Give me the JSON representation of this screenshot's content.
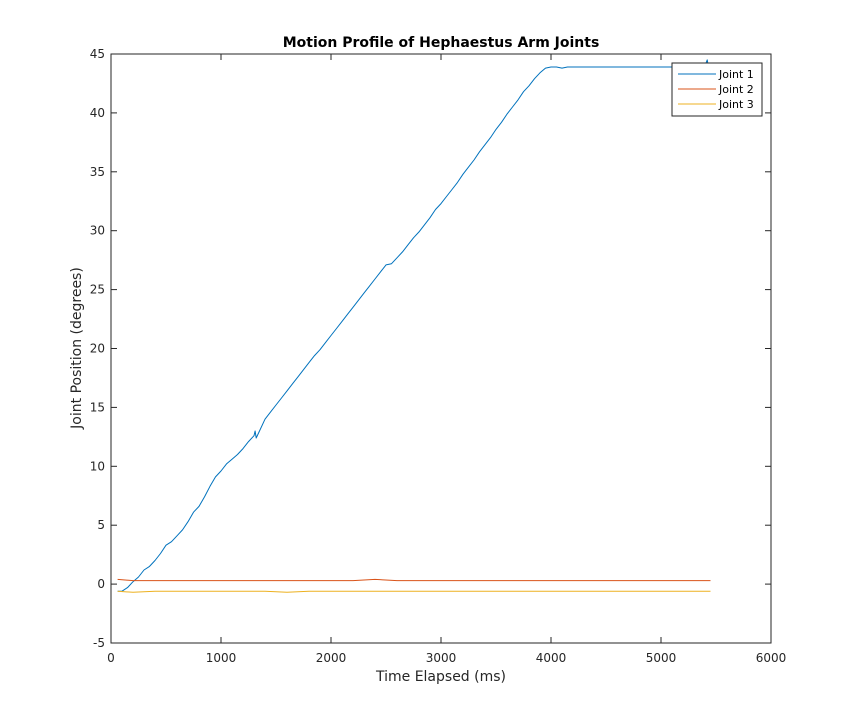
{
  "chart_data": {
    "type": "line",
    "title": "Motion Profile of Hephaestus Arm Joints",
    "xlabel": "Time Elapsed (ms)",
    "ylabel": "Joint Position (degrees)",
    "xlim": [
      0,
      6000
    ],
    "ylim": [
      -5,
      45
    ],
    "xticks": [
      0,
      1000,
      2000,
      3000,
      4000,
      5000,
      6000
    ],
    "yticks": [
      -5,
      0,
      5,
      10,
      15,
      20,
      25,
      30,
      35,
      40,
      45
    ],
    "grid": false,
    "legend": {
      "position": "top-right",
      "entries": [
        "Joint 1",
        "Joint 2",
        "Joint 3"
      ]
    },
    "series": [
      {
        "name": "Joint 1",
        "color": "#0072BD",
        "x": [
          60,
          100,
          150,
          200,
          250,
          300,
          350,
          400,
          450,
          500,
          550,
          600,
          650,
          700,
          750,
          800,
          850,
          900,
          950,
          1000,
          1050,
          1100,
          1150,
          1200,
          1250,
          1300,
          1310,
          1320,
          1350,
          1400,
          1450,
          1500,
          1550,
          1600,
          1650,
          1700,
          1750,
          1800,
          1850,
          1900,
          1950,
          2000,
          2050,
          2100,
          2150,
          2200,
          2250,
          2300,
          2350,
          2400,
          2450,
          2500,
          2550,
          2600,
          2650,
          2700,
          2750,
          2800,
          2850,
          2900,
          2950,
          3000,
          3050,
          3100,
          3150,
          3200,
          3250,
          3300,
          3350,
          3400,
          3450,
          3500,
          3550,
          3600,
          3650,
          3700,
          3750,
          3800,
          3850,
          3900,
          3950,
          4000,
          4050,
          4100,
          4150,
          4200,
          4250,
          4300,
          4400,
          4500,
          4600,
          4700,
          4800,
          4900,
          5000,
          5100,
          5200,
          5300,
          5400,
          5420,
          5430,
          5450
        ],
        "y": [
          -0.6,
          -0.6,
          -0.3,
          0.2,
          0.6,
          1.2,
          1.5,
          2.0,
          2.6,
          3.3,
          3.6,
          4.1,
          4.6,
          5.3,
          6.1,
          6.6,
          7.4,
          8.3,
          9.1,
          9.6,
          10.2,
          10.6,
          11.0,
          11.5,
          12.1,
          12.6,
          13.0,
          12.4,
          13.0,
          14.0,
          14.6,
          15.2,
          15.8,
          16.4,
          17.0,
          17.6,
          18.2,
          18.8,
          19.4,
          19.9,
          20.5,
          21.1,
          21.7,
          22.3,
          22.9,
          23.5,
          24.1,
          24.7,
          25.3,
          25.9,
          26.5,
          27.1,
          27.2,
          27.7,
          28.2,
          28.8,
          29.4,
          29.9,
          30.5,
          31.1,
          31.8,
          32.3,
          32.9,
          33.5,
          34.1,
          34.8,
          35.4,
          36.0,
          36.7,
          37.3,
          37.9,
          38.6,
          39.2,
          39.9,
          40.5,
          41.1,
          41.8,
          42.3,
          42.9,
          43.4,
          43.8,
          43.9,
          43.9,
          43.8,
          43.9,
          43.9,
          43.9,
          43.9,
          43.9,
          43.9,
          43.9,
          43.9,
          43.9,
          43.9,
          43.9,
          43.9,
          43.9,
          43.9,
          44.0,
          44.5,
          44.0,
          43.9
        ]
      },
      {
        "name": "Joint 2",
        "color": "#D95319",
        "x": [
          60,
          200,
          400,
          600,
          800,
          1000,
          1200,
          1400,
          1600,
          1800,
          2000,
          2200,
          2400,
          2600,
          2800,
          3000,
          3200,
          3400,
          3600,
          3800,
          4000,
          4200,
          4400,
          4600,
          4800,
          5000,
          5200,
          5450
        ],
        "y": [
          0.4,
          0.3,
          0.3,
          0.3,
          0.3,
          0.3,
          0.3,
          0.3,
          0.3,
          0.3,
          0.3,
          0.3,
          0.4,
          0.3,
          0.3,
          0.3,
          0.3,
          0.3,
          0.3,
          0.3,
          0.3,
          0.3,
          0.3,
          0.3,
          0.3,
          0.3,
          0.3,
          0.3
        ]
      },
      {
        "name": "Joint 3",
        "color": "#EDB120",
        "x": [
          60,
          200,
          400,
          600,
          800,
          1000,
          1200,
          1400,
          1600,
          1800,
          2000,
          2200,
          2400,
          2600,
          2800,
          3000,
          3200,
          3400,
          3600,
          3800,
          4000,
          4200,
          4400,
          4600,
          4800,
          5000,
          5200,
          5450
        ],
        "y": [
          -0.6,
          -0.7,
          -0.6,
          -0.6,
          -0.6,
          -0.6,
          -0.6,
          -0.6,
          -0.7,
          -0.6,
          -0.6,
          -0.6,
          -0.6,
          -0.6,
          -0.6,
          -0.6,
          -0.6,
          -0.6,
          -0.6,
          -0.6,
          -0.6,
          -0.6,
          -0.6,
          -0.6,
          -0.6,
          -0.6,
          -0.6,
          -0.6
        ]
      }
    ]
  }
}
